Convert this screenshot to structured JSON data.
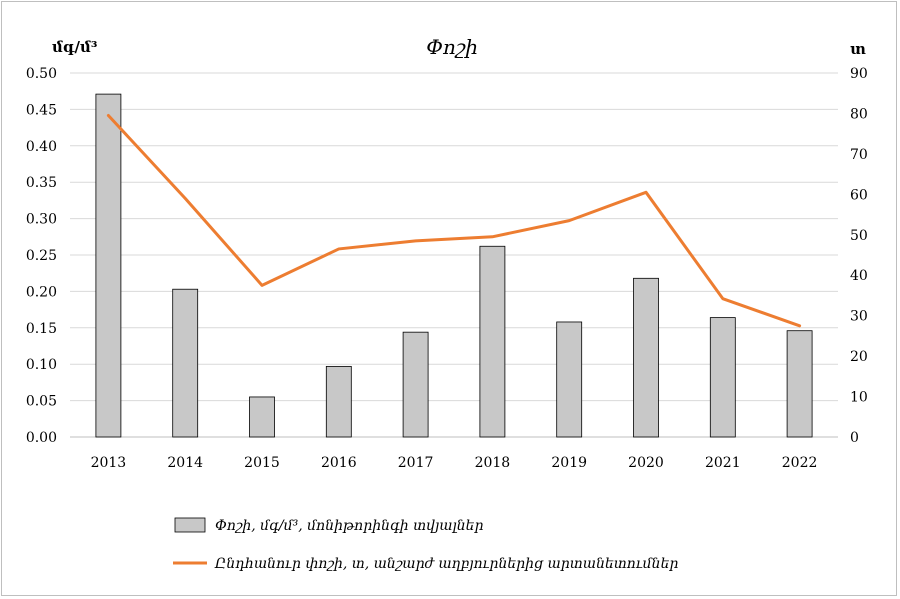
{
  "chart_data": {
    "type": "bar+line",
    "title": "Փոշի",
    "categories": [
      "2013",
      "2014",
      "2015",
      "2016",
      "2017",
      "2018",
      "2019",
      "2020",
      "2021",
      "2022"
    ],
    "left_axis": {
      "label": "մգ/մ³",
      "ylim": [
        0,
        0.5
      ],
      "ticks": [
        "0.00",
        "0.05",
        "0.10",
        "0.15",
        "0.20",
        "0.25",
        "0.30",
        "0.35",
        "0.40",
        "0.45",
        "0.50"
      ]
    },
    "right_axis": {
      "label": "տ",
      "ylim": [
        0,
        90
      ],
      "ticks": [
        "0",
        "10",
        "20",
        "30",
        "40",
        "50",
        "60",
        "70",
        "80",
        "90"
      ]
    },
    "series": [
      {
        "name": "Փոշի, մգ/մ³, մոնիթորինգի տվյալներ",
        "type": "bar",
        "axis": "left",
        "color": "#c8c8c8",
        "values": [
          0.471,
          0.203,
          0.055,
          0.097,
          0.144,
          0.262,
          0.158,
          0.218,
          0.164,
          0.146
        ]
      },
      {
        "name": "Ընդհանուր փոշի, տ, անշարժ աղբյուրներից արտանետումներ",
        "type": "line",
        "axis": "right",
        "color": "#ed7d31",
        "values": [
          79.5,
          59,
          37.5,
          46.5,
          48.5,
          49.5,
          53.5,
          60.5,
          34.2,
          27.5
        ]
      }
    ],
    "grid": true,
    "legend_position": "bottom"
  }
}
